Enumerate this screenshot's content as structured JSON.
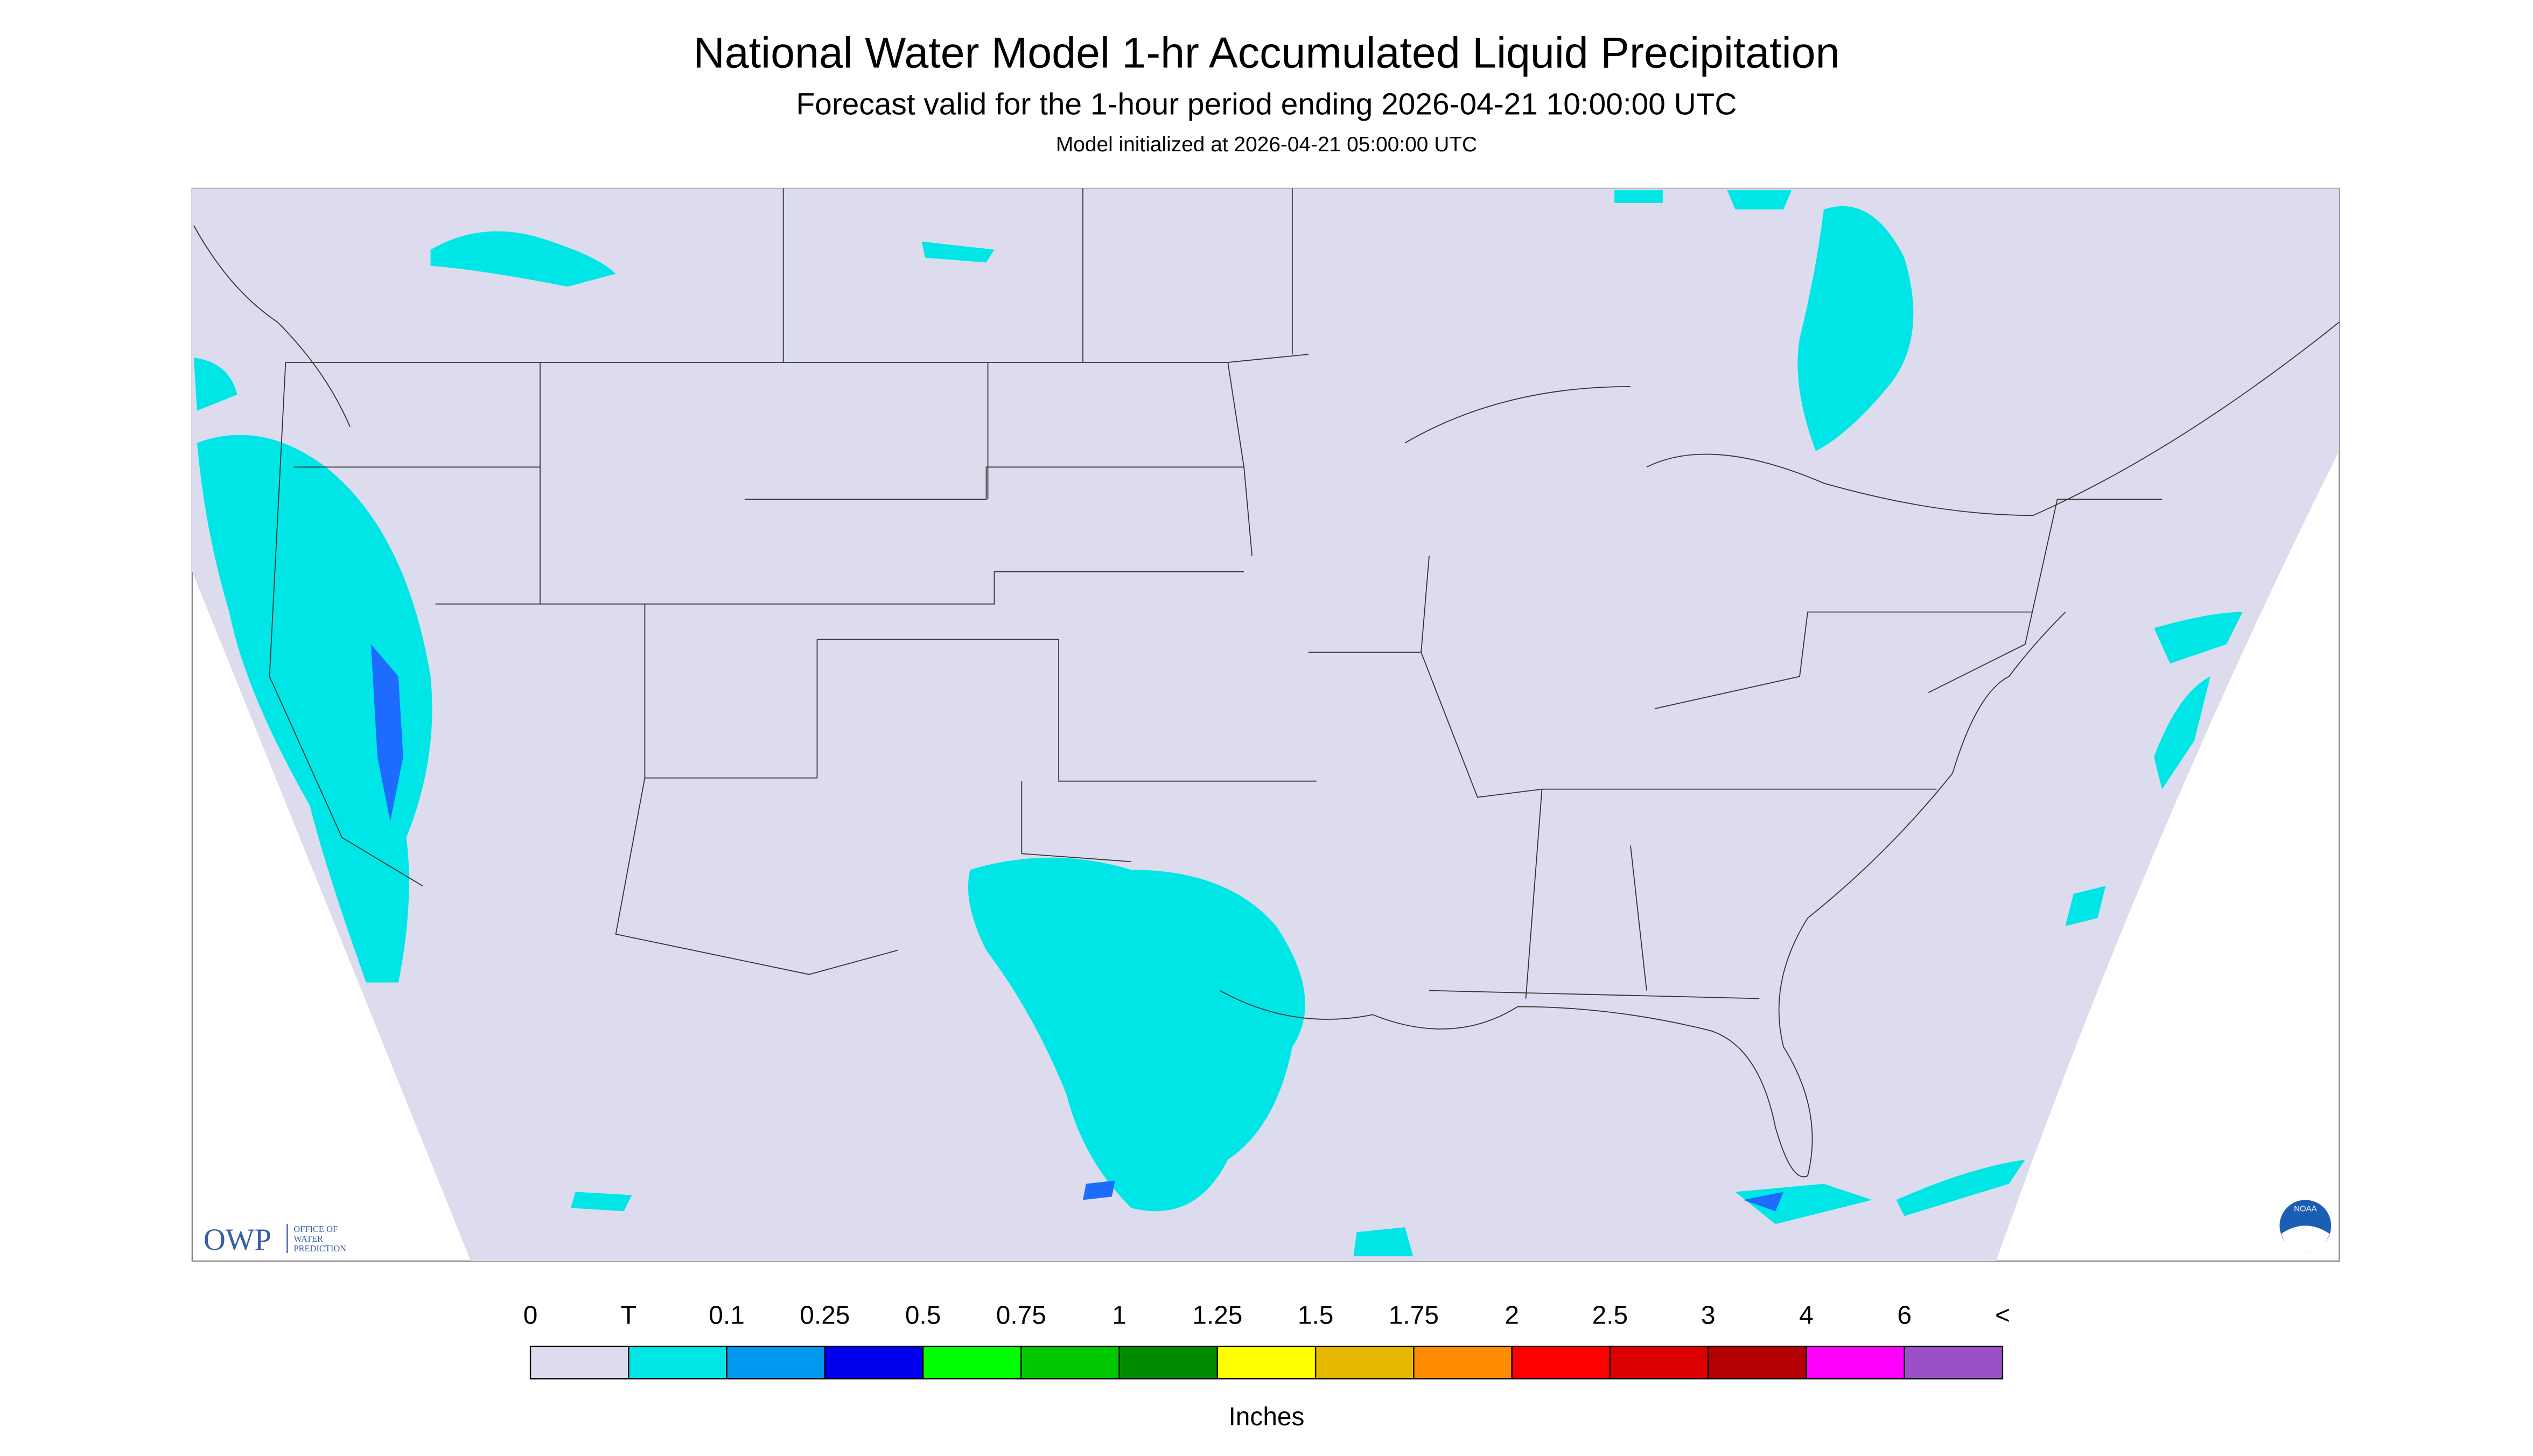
{
  "header": {
    "title": "National Water Model 1-hr Accumulated Liquid Precipitation",
    "subtitle": "Forecast valid for the 1-hour period ending 2026-04-21 10:00:00 UTC",
    "note": "Model initialized at 2026-04-21 05:00:00 UTC"
  },
  "legend": {
    "labels": [
      "0",
      "T",
      "0.1",
      "0.25",
      "0.5",
      "0.75",
      "1",
      "1.25",
      "1.5",
      "1.75",
      "2",
      "2.5",
      "3",
      "4",
      "6",
      "<"
    ],
    "colors": [
      "#dcdcee",
      "#00e6e6",
      "#0099f0",
      "#0000f0",
      "#00ff00",
      "#00c800",
      "#008c00",
      "#ffff00",
      "#e6b800",
      "#ff8c00",
      "#ff0000",
      "#dc0000",
      "#b40000",
      "#ff00ff",
      "#9b50c8"
    ],
    "unit": "Inches"
  },
  "logo": {
    "acronym": "OWP",
    "lines": [
      "OFFICE OF",
      "WATER",
      "PREDICTION"
    ],
    "badge": "NOAA"
  }
}
